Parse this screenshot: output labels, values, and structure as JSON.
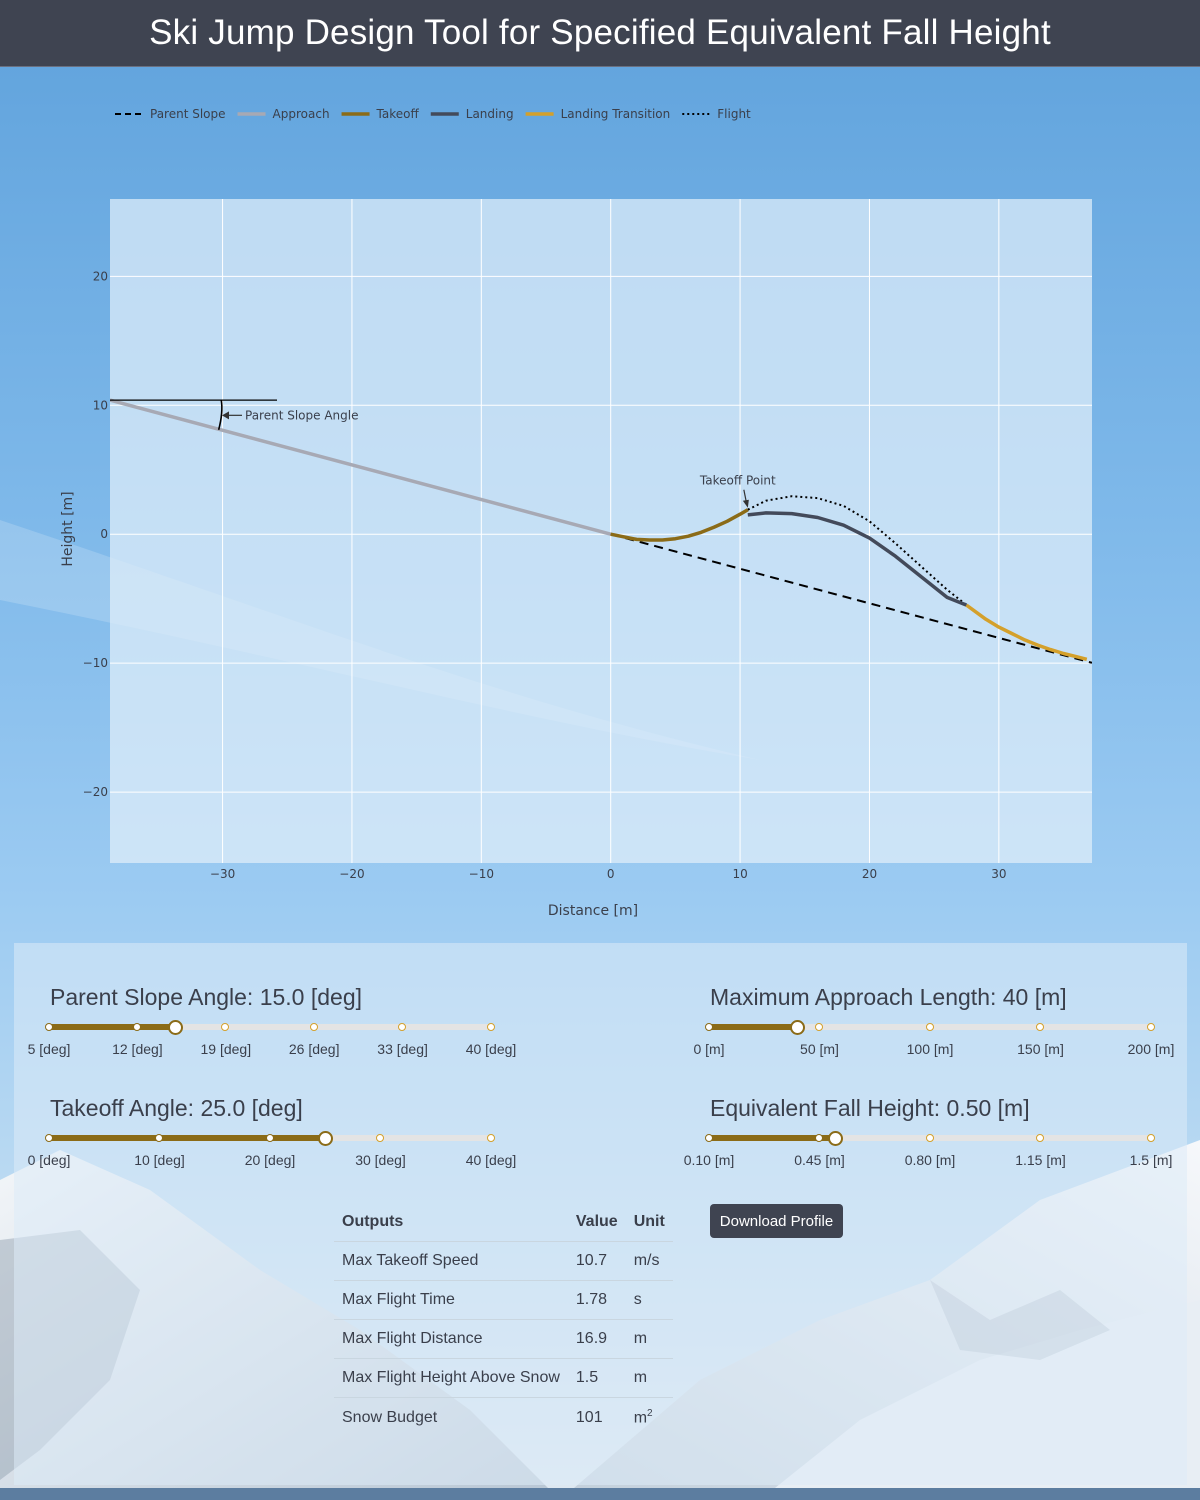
{
  "header": {
    "title": "Ski Jump Design Tool for Specified Equivalent Fall Height"
  },
  "legend": [
    {
      "name": "Parent Slope",
      "color": "#000000",
      "style": "dash"
    },
    {
      "name": "Approach",
      "color": "#a7a9b4",
      "style": "solid"
    },
    {
      "name": "Takeoff",
      "color": "#8b6b17",
      "style": "solid"
    },
    {
      "name": "Landing",
      "color": "#434a5a",
      "style": "solid"
    },
    {
      "name": "Landing Transition",
      "color": "#d4a02b",
      "style": "solid"
    },
    {
      "name": "Flight",
      "color": "#000000",
      "style": "dot"
    }
  ],
  "chart_data": {
    "type": "line",
    "xlabel": "Distance [m]",
    "ylabel": "Height [m]",
    "xlim": [
      -38.7,
      37.2
    ],
    "ylim": [
      -25.5,
      26
    ],
    "xticks": [
      -30,
      -20,
      -10,
      0,
      10,
      20,
      30
    ],
    "yticks": [
      -20,
      -10,
      0,
      10,
      20
    ],
    "grid": true,
    "legend_position": "top-left",
    "annotations": [
      {
        "text": "Parent Slope Angle",
        "x": -30,
        "y": 9.3
      },
      {
        "text": "Takeoff Point",
        "x": 10.6,
        "y": 1.9
      }
    ],
    "series": [
      {
        "name": "Parent Slope",
        "x": [
          0,
          37.2
        ],
        "y": [
          0,
          -9.97
        ]
      },
      {
        "name": "Approach",
        "x": [
          -38.7,
          0
        ],
        "y": [
          10.4,
          0
        ]
      },
      {
        "name": "Takeoff",
        "x": [
          0,
          1,
          2,
          3,
          4,
          5,
          6,
          7,
          8,
          9,
          10,
          10.6
        ],
        "y": [
          0,
          -0.2,
          -0.4,
          -0.45,
          -0.45,
          -0.35,
          -0.15,
          0.15,
          0.55,
          1.0,
          1.55,
          1.9
        ]
      },
      {
        "name": "Landing",
        "x": [
          10.6,
          12,
          14,
          16,
          18,
          20,
          22,
          24,
          26,
          27.5
        ],
        "y": [
          1.5,
          1.65,
          1.6,
          1.3,
          0.7,
          -0.3,
          -1.7,
          -3.3,
          -4.9,
          -5.5
        ]
      },
      {
        "name": "Landing Transition",
        "x": [
          27.5,
          29,
          30,
          31,
          32,
          33,
          34,
          35,
          36,
          36.8
        ],
        "y": [
          -5.5,
          -6.6,
          -7.2,
          -7.7,
          -8.2,
          -8.6,
          -8.95,
          -9.25,
          -9.5,
          -9.7
        ]
      },
      {
        "name": "Flight",
        "x": [
          10.6,
          12,
          14,
          16,
          18,
          20,
          22,
          24,
          26,
          27.5
        ],
        "y": [
          1.9,
          2.6,
          2.95,
          2.8,
          2.2,
          1.0,
          -0.7,
          -2.5,
          -4.3,
          -5.5
        ]
      }
    ]
  },
  "controls": {
    "parent_slope": {
      "title": "Parent Slope Angle: 15.0 [deg]",
      "min": 5,
      "max": 40,
      "value": 15,
      "marks": [
        {
          "v": 5,
          "label": "5 [deg]"
        },
        {
          "v": 12,
          "label": "12 [deg]"
        },
        {
          "v": 19,
          "label": "19 [deg]"
        },
        {
          "v": 26,
          "label": "26 [deg]"
        },
        {
          "v": 33,
          "label": "33 [deg]"
        },
        {
          "v": 40,
          "label": "40 [deg]"
        }
      ]
    },
    "approach_length": {
      "title": "Maximum Approach Length: 40 [m]",
      "min": 0,
      "max": 200,
      "value": 40,
      "marks": [
        {
          "v": 0,
          "label": "0 [m]"
        },
        {
          "v": 50,
          "label": "50 [m]"
        },
        {
          "v": 100,
          "label": "100 [m]"
        },
        {
          "v": 150,
          "label": "150 [m]"
        },
        {
          "v": 200,
          "label": "200 [m]"
        }
      ]
    },
    "takeoff_angle": {
      "title": "Takeoff Angle: 25.0 [deg]",
      "min": 0,
      "max": 40,
      "value": 25,
      "marks": [
        {
          "v": 0,
          "label": "0 [deg]"
        },
        {
          "v": 10,
          "label": "10 [deg]"
        },
        {
          "v": 20,
          "label": "20 [deg]"
        },
        {
          "v": 30,
          "label": "30 [deg]"
        },
        {
          "v": 40,
          "label": "40 [deg]"
        }
      ]
    },
    "fall_height": {
      "title": "Equivalent Fall Height: 0.50 [m]",
      "min": 0.1,
      "max": 1.5,
      "value": 0.5,
      "marks": [
        {
          "v": 0.1,
          "label": "0.10 [m]"
        },
        {
          "v": 0.45,
          "label": "0.45 [m]"
        },
        {
          "v": 0.8,
          "label": "0.80 [m]"
        },
        {
          "v": 1.15,
          "label": "1.15 [m]"
        },
        {
          "v": 1.5,
          "label": "1.5 [m]"
        }
      ]
    }
  },
  "download_button": {
    "label": "Download Profile"
  },
  "outputs": {
    "headers": [
      "Outputs",
      "Value",
      "Unit"
    ],
    "rows": [
      {
        "name": "Max Takeoff Speed",
        "value": "10.7",
        "unit": "m/s"
      },
      {
        "name": "Max Flight Time",
        "value": "1.78",
        "unit": "s"
      },
      {
        "name": "Max Flight Distance",
        "value": "16.9",
        "unit": "m"
      },
      {
        "name": "Max Flight Height Above Snow",
        "value": "1.5",
        "unit": "m"
      },
      {
        "name": "Snow Budget",
        "value": "101",
        "unit": "m",
        "unit_sup": "2"
      }
    ]
  }
}
